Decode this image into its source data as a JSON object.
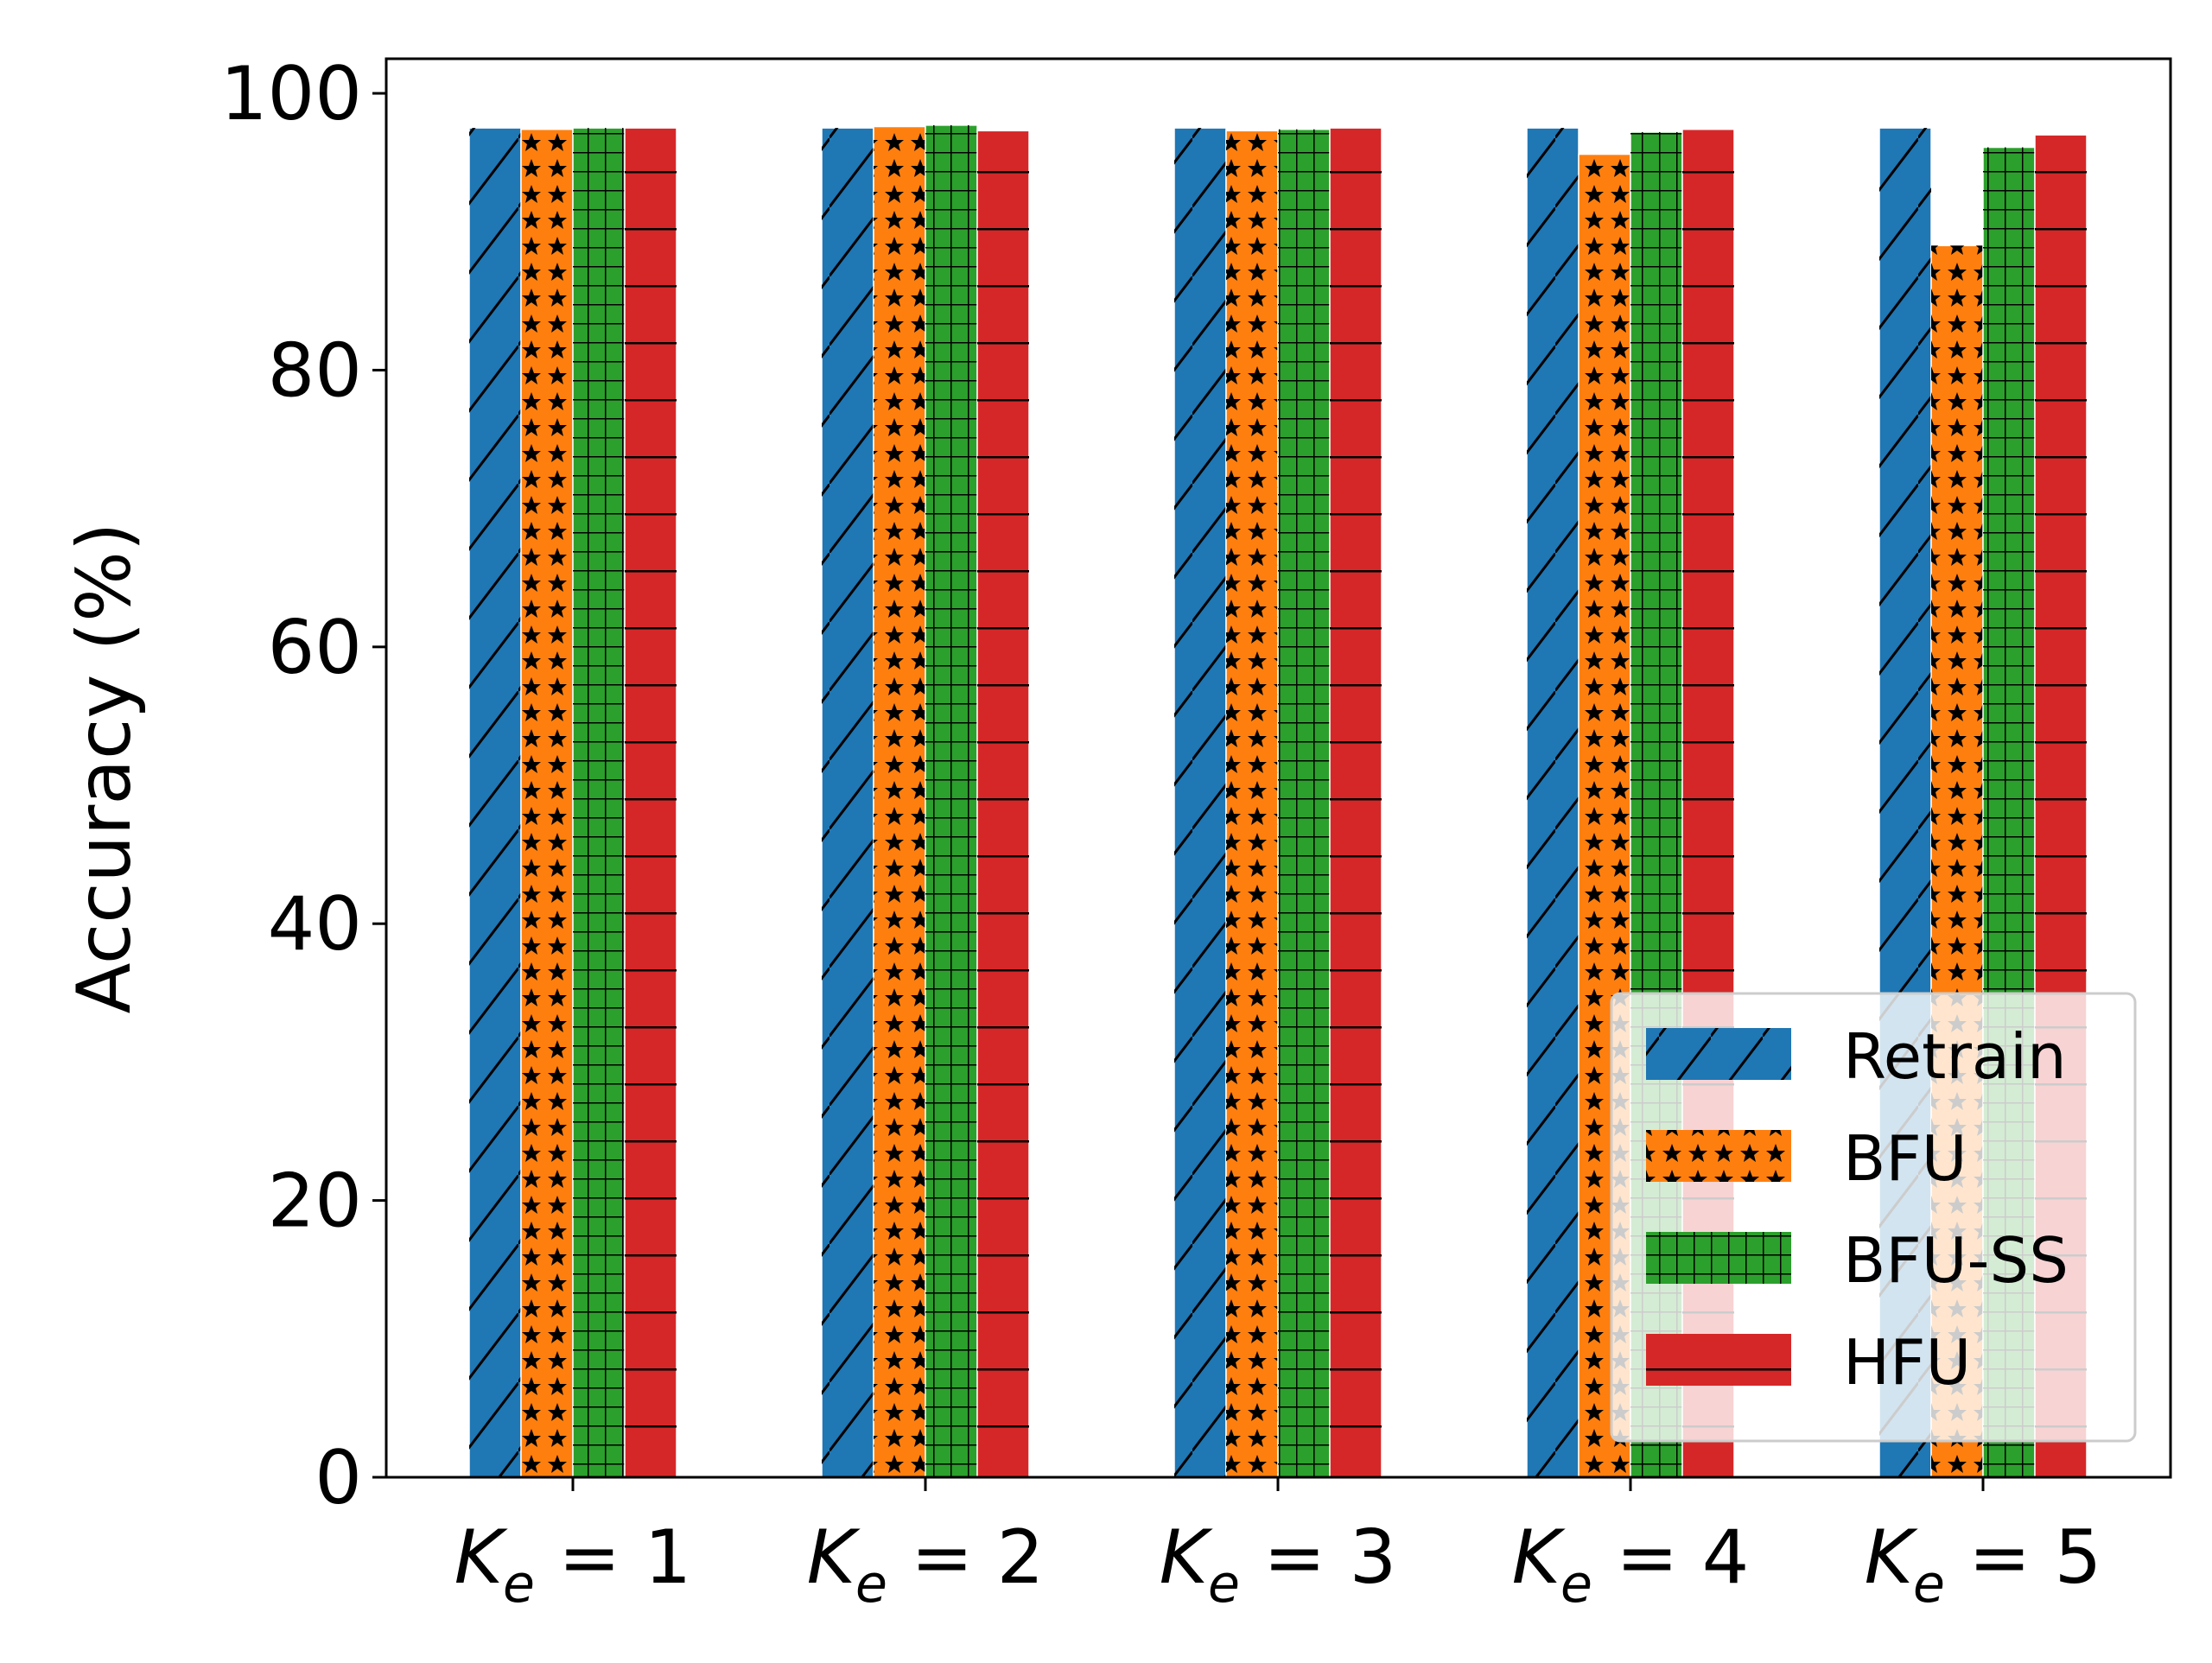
{
  "chart_data": {
    "type": "bar",
    "title": "",
    "xlabel": "",
    "ylabel": "Accuracy (%)",
    "ylim": [
      0,
      102.5
    ],
    "yticks": [
      0,
      20,
      40,
      60,
      80,
      100
    ],
    "grid": false,
    "legend_position": "lower-right",
    "categories": [
      {
        "base": "K",
        "sub": "e",
        "rest": " = 1"
      },
      {
        "base": "K",
        "sub": "e",
        "rest": " = 2"
      },
      {
        "base": "K",
        "sub": "e",
        "rest": " = 3"
      },
      {
        "base": "K",
        "sub": "e",
        "rest": " = 4"
      },
      {
        "base": "K",
        "sub": "e",
        "rest": " = 5"
      }
    ],
    "series": [
      {
        "name": "Retrain",
        "color": "#1f77b4",
        "hatch": "diagonal",
        "values": [
          97.5,
          97.5,
          97.5,
          97.5,
          97.5
        ]
      },
      {
        "name": "BFU",
        "color": "#ff7f0e",
        "hatch": "stars",
        "values": [
          97.4,
          97.6,
          97.3,
          95.6,
          89.0
        ]
      },
      {
        "name": "BFU-SS",
        "color": "#2ca02c",
        "hatch": "grid",
        "values": [
          97.5,
          97.7,
          97.4,
          97.2,
          96.1
        ]
      },
      {
        "name": "HFU",
        "color": "#d62728",
        "hatch": "horizontal",
        "values": [
          97.5,
          97.3,
          97.5,
          97.4,
          97.0
        ]
      }
    ]
  }
}
